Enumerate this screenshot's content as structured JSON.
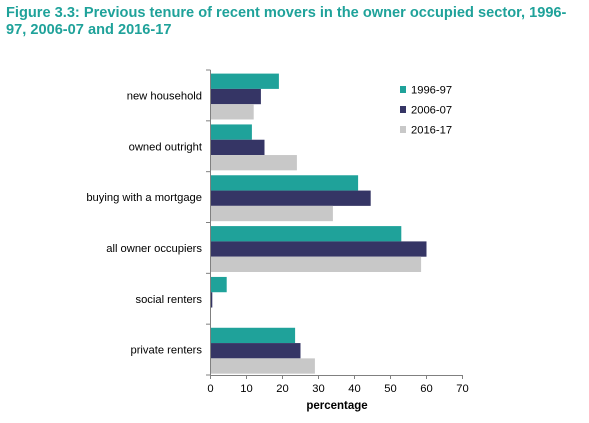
{
  "chart_data": {
    "type": "bar",
    "orientation": "horizontal",
    "title": "Figure 3.3: Previous tenure of recent movers in the owner occupied sector, 1996-97, 2006-07 and 2016-17",
    "xlabel": "percentage",
    "ylabel": "",
    "xlim": [
      0,
      70
    ],
    "xticks": [
      "0",
      "10",
      "20",
      "30",
      "40",
      "50",
      "60",
      "70"
    ],
    "grid": false,
    "legend_position": "top-right",
    "categories": [
      "new household",
      "owned outright",
      "buying with a mortgage",
      "all owner occupiers",
      "social renters",
      "private renters"
    ],
    "series": [
      {
        "name": "1996-97",
        "color": "#1fa29a",
        "values": [
          19,
          11.5,
          41,
          53,
          4.5,
          23.5
        ]
      },
      {
        "name": "2006-07",
        "color": "#353565",
        "values": [
          14,
          15,
          44.5,
          60,
          0.5,
          25
        ]
      },
      {
        "name": "2016-17",
        "color": "#c8c8c8",
        "values": [
          12,
          24,
          34,
          58.5,
          0,
          29
        ]
      }
    ]
  }
}
